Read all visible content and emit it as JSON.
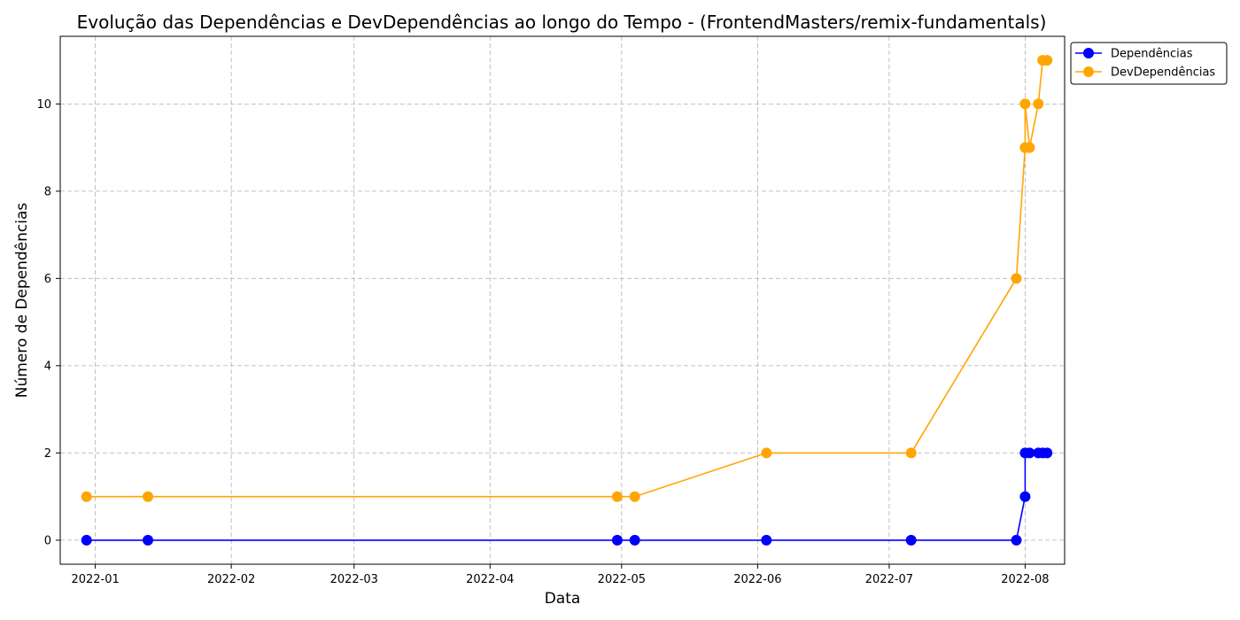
{
  "chart_data": {
    "type": "line",
    "title": "Evolução das Dependências e DevDependências ao longo do Tempo - (FrontendMasters/remix-fundamentals)",
    "xlabel": "Data",
    "ylabel": "Número de Dependências",
    "x_ticks": [
      "2022-01",
      "2022-02",
      "2022-03",
      "2022-04",
      "2022-05",
      "2022-06",
      "2022-07",
      "2022-08"
    ],
    "y_ticks": [
      "0",
      "2",
      "4",
      "6",
      "8",
      "10"
    ],
    "ylim": [
      -0.55,
      11.55
    ],
    "xlim": [
      "2021-12-24",
      "2022-08-10"
    ],
    "grid": true,
    "legend_position": "outside-top-right",
    "series": [
      {
        "name": "Dependências",
        "color": "#0000ff",
        "marker": "circle",
        "points": [
          {
            "x": "2021-12-30",
            "y": 0
          },
          {
            "x": "2022-01-13",
            "y": 0
          },
          {
            "x": "2022-04-30",
            "y": 0
          },
          {
            "x": "2022-05-04",
            "y": 0
          },
          {
            "x": "2022-06-03",
            "y": 0
          },
          {
            "x": "2022-07-06",
            "y": 0
          },
          {
            "x": "2022-07-30",
            "y": 0
          },
          {
            "x": "2022-08-01",
            "y": 1
          },
          {
            "x": "2022-08-01",
            "y": 2
          },
          {
            "x": "2022-08-02",
            "y": 2
          },
          {
            "x": "2022-08-04",
            "y": 2
          },
          {
            "x": "2022-08-05",
            "y": 2
          },
          {
            "x": "2022-08-06",
            "y": 2
          }
        ]
      },
      {
        "name": "DevDependências",
        "color": "#ffa500",
        "marker": "circle",
        "points": [
          {
            "x": "2021-12-30",
            "y": 1
          },
          {
            "x": "2022-01-13",
            "y": 1
          },
          {
            "x": "2022-04-30",
            "y": 1
          },
          {
            "x": "2022-05-04",
            "y": 1
          },
          {
            "x": "2022-06-03",
            "y": 2
          },
          {
            "x": "2022-07-06",
            "y": 2
          },
          {
            "x": "2022-07-30",
            "y": 6
          },
          {
            "x": "2022-08-01",
            "y": 9
          },
          {
            "x": "2022-08-01",
            "y": 10
          },
          {
            "x": "2022-08-02",
            "y": 9
          },
          {
            "x": "2022-08-04",
            "y": 10
          },
          {
            "x": "2022-08-05",
            "y": 11
          },
          {
            "x": "2022-08-06",
            "y": 11
          }
        ]
      }
    ]
  }
}
